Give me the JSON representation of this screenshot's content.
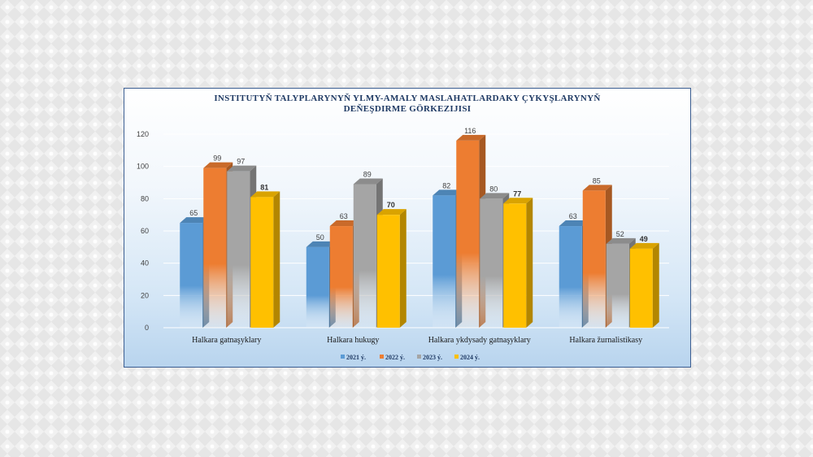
{
  "chart_data": {
    "type": "bar",
    "title_lines": [
      "INSTITUTYŇ TALYPLARYNYŇ YLMY-AMALY MASLAHATLARDAKY ÇYKYŞLARYNYŇ",
      "DEŇEŞDIRME GÖRKEZIJISI"
    ],
    "categories": [
      "Halkara gatnaşyklary",
      "Halkara hukugy",
      "Halkara ykdysady gatnaşyklary",
      "Halkara žurnalistikasy"
    ],
    "series": [
      {
        "name": "2021 ý.",
        "color": "#5b9bd5",
        "values": [
          65,
          50,
          82,
          63
        ]
      },
      {
        "name": "2022 ý.",
        "color": "#ed7d31",
        "values": [
          99,
          63,
          116,
          85
        ]
      },
      {
        "name": "2023 ý.",
        "color": "#a5a5a5",
        "values": [
          97,
          89,
          80,
          52
        ]
      },
      {
        "name": "2024 ý.",
        "color": "#ffc000",
        "values": [
          81,
          70,
          77,
          49
        ]
      }
    ],
    "ylim": [
      0,
      120
    ],
    "yticks": [
      "0",
      "20",
      "40",
      "60",
      "80",
      "100",
      "120"
    ],
    "grid": true,
    "legend_position": "bottom"
  }
}
